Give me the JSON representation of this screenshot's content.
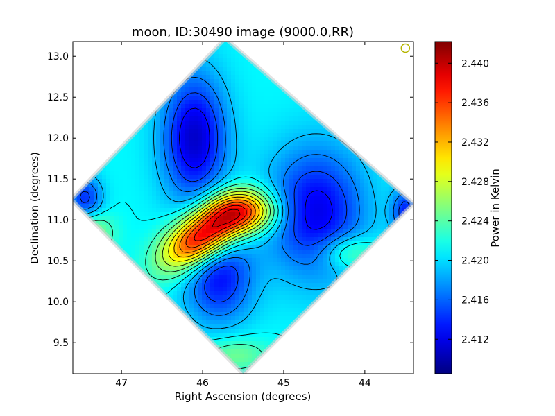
{
  "chart_data": {
    "type": "heatmap",
    "title": "moon, ID:30490 image (9000.0,RR)",
    "xlabel": "Right Ascension (degrees)",
    "ylabel": "Declination (degrees)",
    "xlim": [
      47.6,
      43.4
    ],
    "ylim": [
      9.12,
      13.18
    ],
    "x_ticks": [
      47,
      46,
      45,
      44
    ],
    "y_ticks": [
      9.5,
      10.0,
      10.5,
      11.0,
      11.5,
      12.0,
      12.5,
      13.0
    ],
    "x_tick_labels": [
      "47",
      "46",
      "45",
      "44"
    ],
    "y_tick_labels": [
      "9.5",
      "10.0",
      "10.5",
      "11.0",
      "11.5",
      "12.0",
      "12.5",
      "13.0"
    ],
    "colorbar": {
      "label": "Power in Kelvin",
      "colormap": "jet",
      "range": [
        2.4085,
        2.4422
      ],
      "ticks": [
        2.412,
        2.416,
        2.42,
        2.424,
        2.428,
        2.432,
        2.436,
        2.44
      ],
      "tick_labels": [
        "2.412",
        "2.416",
        "2.420",
        "2.424",
        "2.428",
        "2.432",
        "2.436",
        "2.440"
      ]
    },
    "map_footprint": {
      "shape": "diamond",
      "center": [
        45.5,
        11.13
      ],
      "vertices": [
        [
          45.72,
          13.22
        ],
        [
          43.4,
          11.2
        ],
        [
          45.5,
          9.12
        ],
        [
          47.62,
          11.25
        ]
      ]
    },
    "beam_marker": {
      "ra": 43.5,
      "dec": 13.1,
      "color": "#b5b500"
    },
    "features": [
      {
        "kind": "hot-spot",
        "ra": 46.0,
        "dec": 10.8,
        "value": 2.441,
        "sigma": [
          0.38,
          0.2
        ],
        "rotation_deg": 35
      },
      {
        "kind": "warm-ridge",
        "ra": 45.5,
        "dec": 11.1,
        "value": 2.434,
        "sigma": [
          0.3,
          0.18
        ]
      },
      {
        "kind": "cold-spot",
        "ra": 46.1,
        "dec": 12.0,
        "value": 2.411,
        "sigma": [
          0.28,
          0.55
        ]
      },
      {
        "kind": "cold-spot",
        "ra": 44.6,
        "dec": 11.1,
        "value": 2.412,
        "sigma": [
          0.42,
          0.55
        ]
      },
      {
        "kind": "cold-spot",
        "ra": 45.8,
        "dec": 10.3,
        "value": 2.413,
        "sigma": [
          0.3,
          0.4
        ]
      },
      {
        "kind": "cold-spot",
        "ra": 47.45,
        "dec": 11.25,
        "value": 2.414,
        "sigma": [
          0.15,
          0.2
        ]
      },
      {
        "kind": "cold-spot",
        "ra": 43.5,
        "dec": 11.1,
        "value": 2.414,
        "sigma": [
          0.12,
          0.2
        ]
      },
      {
        "kind": "warm-spot",
        "ra": 47.4,
        "dec": 10.85,
        "value": 2.427,
        "sigma": [
          0.2,
          0.18
        ]
      },
      {
        "kind": "warm-spot",
        "ra": 44.2,
        "dec": 10.6,
        "value": 2.426,
        "sigma": [
          0.25,
          0.15
        ]
      },
      {
        "kind": "warm-spot",
        "ra": 45.6,
        "dec": 9.35,
        "value": 2.425,
        "sigma": [
          0.3,
          0.15
        ]
      }
    ],
    "background_value": 2.421,
    "colors": {
      "frame": "#000000",
      "contour": "#000000",
      "outside": "#ffffff"
    }
  }
}
